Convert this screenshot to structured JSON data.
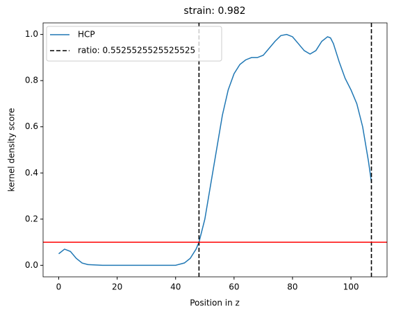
{
  "chart_data": {
    "type": "line",
    "title": "strain: 0.982",
    "xlabel": "Position in z",
    "ylabel": "kernel density score",
    "xlim": [
      -5.35,
      112.35
    ],
    "ylim": [
      -0.05,
      1.05
    ],
    "xticks": [
      0,
      20,
      40,
      60,
      80,
      100
    ],
    "yticks": [
      {
        "value": 0,
        "label": "0.0"
      },
      0.2,
      0.4,
      0.6,
      0.8,
      {
        "value": 1,
        "label": "1.0"
      }
    ],
    "series": [
      {
        "name": "HCP",
        "color": "#1f77b4",
        "x": [
          0,
          2,
          4,
          6,
          8,
          10,
          15,
          20,
          30,
          40,
          43,
          45,
          47,
          48,
          50,
          52,
          54,
          56,
          58,
          60,
          62,
          64,
          66,
          68,
          70,
          72,
          74,
          76,
          78,
          80,
          82,
          84,
          86,
          88,
          90,
          92,
          93,
          94,
          96,
          98,
          100,
          102,
          104,
          106,
          107
        ],
        "values": [
          0.05,
          0.07,
          0.06,
          0.03,
          0.01,
          0.003,
          0,
          0,
          0,
          0,
          0.01,
          0.03,
          0.07,
          0.1,
          0.2,
          0.35,
          0.5,
          0.65,
          0.76,
          0.83,
          0.87,
          0.89,
          0.9,
          0.9,
          0.91,
          0.94,
          0.97,
          0.995,
          1.0,
          0.99,
          0.96,
          0.93,
          0.915,
          0.93,
          0.97,
          0.99,
          0.985,
          0.96,
          0.88,
          0.81,
          0.76,
          0.7,
          0.6,
          0.45,
          0.36
        ]
      }
    ],
    "vlines": {
      "name": "ratio: 0.5525525525525525",
      "color": "#000000",
      "x": [
        48,
        107
      ]
    },
    "hline": {
      "value": 0.1,
      "color": "#ff0000"
    },
    "legend": "upper left"
  }
}
